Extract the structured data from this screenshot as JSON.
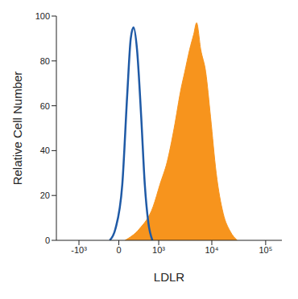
{
  "chart_data": {
    "type": "area",
    "x_label": "LDLR",
    "y_label": "Relative Cell Number",
    "xlim": [
      -2700,
      200000
    ],
    "xticks": [
      {
        "value": -1000,
        "label": "-10³"
      },
      0,
      {
        "value": 1000,
        "label": "10³"
      },
      {
        "value": 10000,
        "label": "10⁴"
      },
      {
        "value": 100000,
        "label": "10⁵"
      }
    ],
    "ylim": [
      0,
      100
    ],
    "yticks": [
      0,
      20,
      40,
      60,
      80,
      100
    ],
    "grid": false,
    "series": [
      {
        "type": "area",
        "color": "#f7941d",
        "x": [
          100,
          370,
          770,
          1060,
          1460,
          1980,
          2690,
          3130,
          3860,
          4620,
          5210,
          6240,
          7710,
          9480,
          12070,
          16280,
          21960,
          29630
        ],
        "values": [
          0,
          5,
          15,
          25,
          35,
          50,
          68,
          75,
          85,
          92,
          97,
          85,
          75,
          55,
          30,
          12,
          4,
          0
        ]
      },
      {
        "type": "line",
        "color": "#1f5aa6",
        "x": [
          -150,
          -56,
          56,
          138,
          200,
          252,
          323,
          417,
          508,
          609,
          745
        ],
        "values": [
          0,
          5,
          25,
          65,
          90,
          95,
          85,
          55,
          25,
          8,
          0
        ]
      }
    ]
  }
}
